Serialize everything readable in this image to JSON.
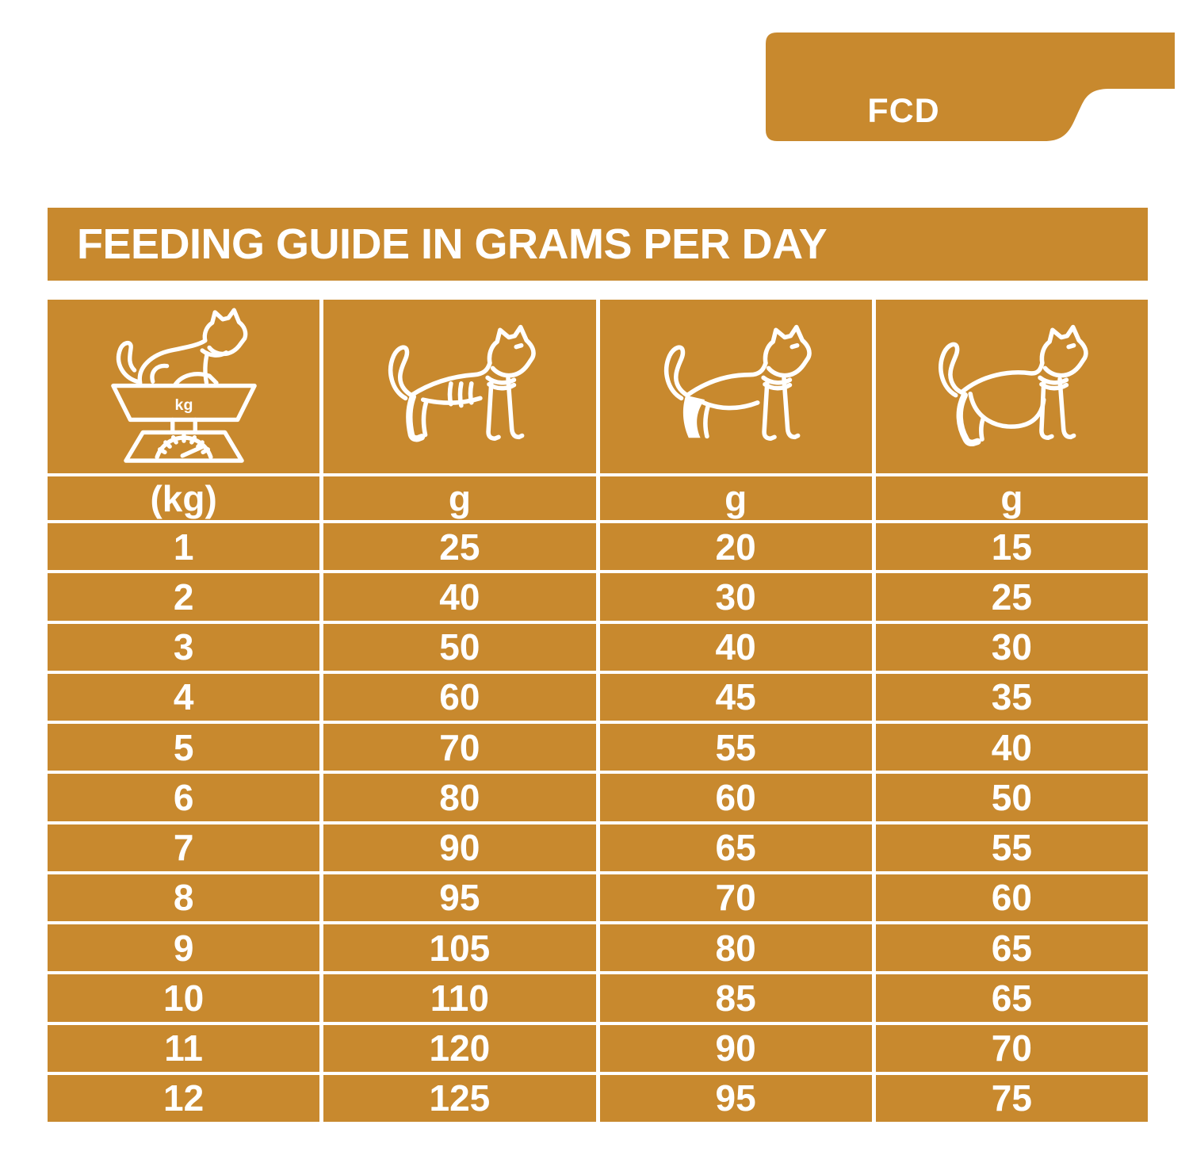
{
  "colors": {
    "accent": "#C8892E",
    "text_on_accent": "#FFFFFF",
    "page_background": "#FFFFFF"
  },
  "tab": {
    "label": "FCD"
  },
  "title": "FEEDING GUIDE IN GRAMS PER DAY",
  "table": {
    "columns": [
      {
        "icon": "cat-on-scale-icon",
        "unit": "(kg)"
      },
      {
        "icon": "underweight-cat-icon",
        "unit": "g"
      },
      {
        "icon": "ideal-weight-cat-icon",
        "unit": "g"
      },
      {
        "icon": "overweight-cat-icon",
        "unit": "g"
      }
    ],
    "scale_icon_label": "kg",
    "rows": [
      [
        "1",
        "25",
        "20",
        "15"
      ],
      [
        "2",
        "40",
        "30",
        "25"
      ],
      [
        "3",
        "50",
        "40",
        "30"
      ],
      [
        "4",
        "60",
        "45",
        "35"
      ],
      [
        "5",
        "70",
        "55",
        "40"
      ],
      [
        "6",
        "80",
        "60",
        "50"
      ],
      [
        "7",
        "90",
        "65",
        "55"
      ],
      [
        "8",
        "95",
        "70",
        "60"
      ],
      [
        "9",
        "105",
        "80",
        "65"
      ],
      [
        "10",
        "110",
        "85",
        "65"
      ],
      [
        "11",
        "120",
        "90",
        "70"
      ],
      [
        "12",
        "125",
        "95",
        "75"
      ]
    ]
  },
  "chart_data": {
    "type": "table",
    "title": "FEEDING GUIDE IN GRAMS PER DAY",
    "x": [
      1,
      2,
      3,
      4,
      5,
      6,
      7,
      8,
      9,
      10,
      11,
      12
    ],
    "xlabel": "body weight (kg)",
    "series": [
      {
        "name": "slim / underweight cat (g per day)",
        "values": [
          25,
          40,
          50,
          60,
          70,
          80,
          90,
          95,
          105,
          110,
          120,
          125
        ]
      },
      {
        "name": "ideal weight cat (g per day)",
        "values": [
          20,
          30,
          40,
          45,
          55,
          60,
          65,
          70,
          80,
          85,
          90,
          95
        ]
      },
      {
        "name": "overweight cat (g per day)",
        "values": [
          15,
          25,
          30,
          35,
          40,
          50,
          55,
          60,
          65,
          65,
          70,
          75
        ]
      }
    ]
  }
}
